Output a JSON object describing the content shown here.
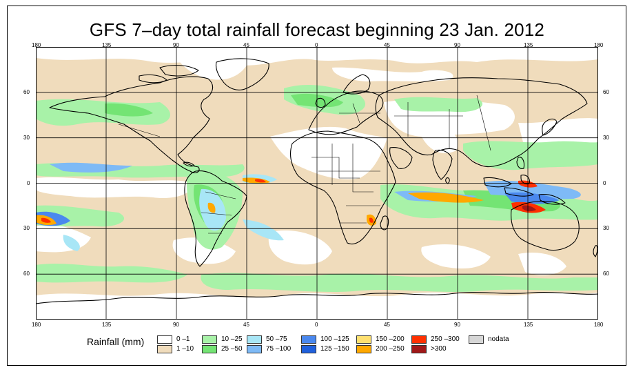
{
  "title": "GFS 7–day total rainfall forecast beginning 23 Jan. 2012",
  "map": {
    "projection": "equirectangular",
    "lon_range": [
      -180,
      180
    ],
    "lat_range": [
      -90,
      90
    ],
    "grid_step_deg": 30,
    "x_ticks": [
      "180",
      "135",
      "90",
      "45",
      "0",
      "45",
      "90",
      "135",
      "180"
    ],
    "y_ticks_left": [
      "60",
      "30",
      "0",
      "30",
      "60"
    ],
    "y_ticks_right": [
      "60",
      "30",
      "0",
      "30",
      "60"
    ]
  },
  "legend": {
    "title": "Rainfall (mm)",
    "items": [
      {
        "label": "0 –1",
        "color": "#ffffff"
      },
      {
        "label": "1 –10",
        "color": "#f0dcbc"
      },
      {
        "label": "10 –25",
        "color": "#a8f2a8"
      },
      {
        "label": "25 –50",
        "color": "#74e474"
      },
      {
        "label": "50 –75",
        "color": "#a8e6f6"
      },
      {
        "label": "75 –100",
        "color": "#7ebaf6"
      },
      {
        "label": "100 –125",
        "color": "#4a88ee"
      },
      {
        "label": "125 –150",
        "color": "#2060dc"
      },
      {
        "label": "150 –200",
        "color": "#ffe070"
      },
      {
        "label": "200 –250",
        "color": "#ffa800"
      },
      {
        "label": "250 –300",
        "color": "#ff3000"
      },
      {
        "label": ">300",
        "color": "#a01818"
      },
      {
        "label": "nodata",
        "color": "#d6d6d6"
      }
    ]
  }
}
